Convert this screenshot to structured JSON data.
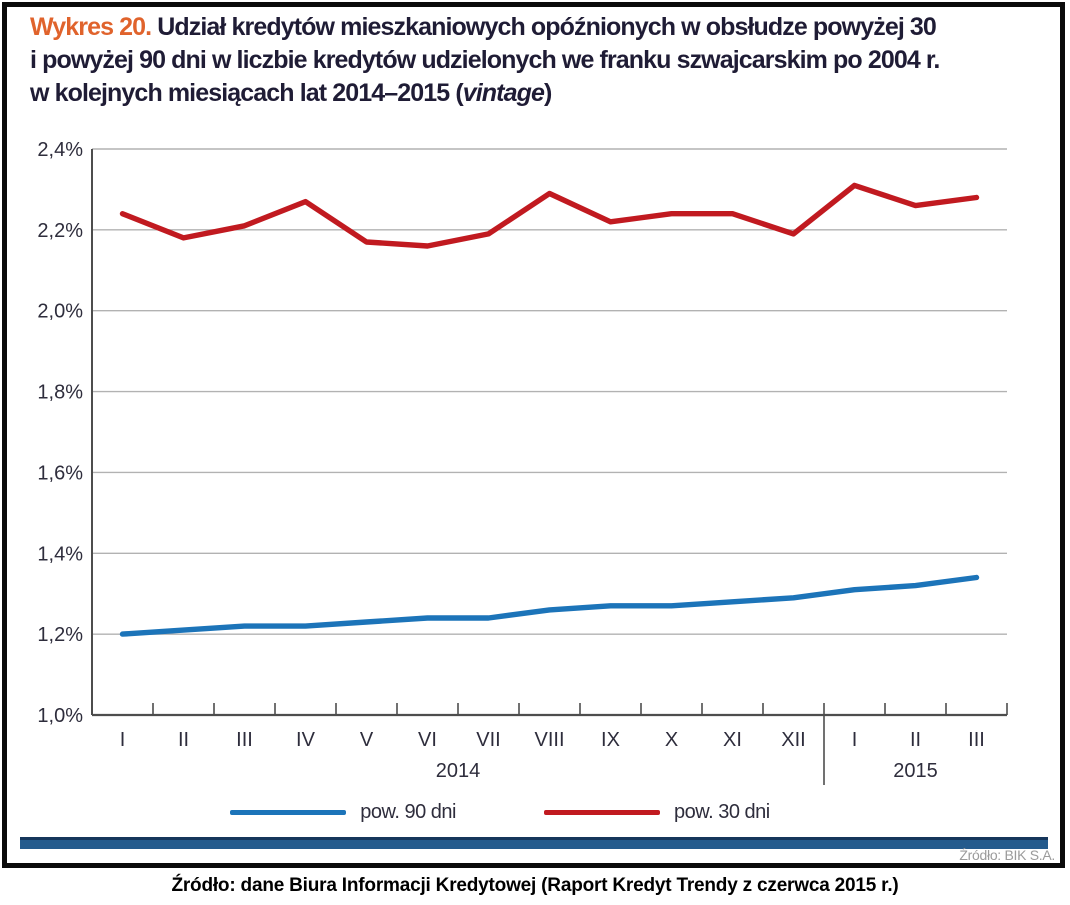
{
  "title": {
    "number": "Wykres 20.",
    "line1": "Udział kredytów mieszkaniowych opóźnionych w obsłudze powyżej 30",
    "line2": "i powyżej 90 dni w liczbie kredytów udzielonych we franku szwajcarskim po 2004 r.",
    "line3_prefix": "w kolejnych miesiącach lat 2014–2015 (",
    "line3_italic": "vintage",
    "line3_suffix": ")"
  },
  "chart_data": {
    "type": "line",
    "title": "Wykres 20. Udział kredytów mieszkaniowych opóźnionych w obsłudze powyżej 30 i powyżej 90 dni w liczbie kredytów udzielonych we franku szwajcarskim po 2004 r. w kolejnych miesiącach lat 2014–2015 (vintage)",
    "categories": [
      "I",
      "II",
      "III",
      "IV",
      "V",
      "VI",
      "VII",
      "VIII",
      "IX",
      "X",
      "XI",
      "XII",
      "I",
      "II",
      "III"
    ],
    "year_groups": [
      {
        "label": "2014",
        "months": 12
      },
      {
        "label": "2015",
        "months": 3
      }
    ],
    "series": [
      {
        "name": "pow. 90 dni",
        "slug": "pow-90-dni",
        "color": "#1c74b9",
        "values": [
          1.2,
          1.21,
          1.22,
          1.22,
          1.23,
          1.24,
          1.24,
          1.26,
          1.27,
          1.27,
          1.28,
          1.29,
          1.31,
          1.32,
          1.34
        ]
      },
      {
        "name": "pow. 30 dni",
        "slug": "pow-30-dni",
        "color": "#c11a20",
        "values": [
          2.24,
          2.18,
          2.21,
          2.27,
          2.17,
          2.16,
          2.19,
          2.29,
          2.22,
          2.24,
          2.24,
          2.19,
          2.31,
          2.26,
          2.28
        ]
      }
    ],
    "ylim": [
      1.0,
      2.4
    ],
    "ytick_step": 0.2,
    "ytick_labels": [
      "1,0%",
      "1,2%",
      "1,4%",
      "1,6%",
      "1,8%",
      "2,0%",
      "2,2%",
      "2,4%"
    ],
    "grid": true,
    "legend_position": "bottom"
  },
  "footer": {
    "source_inner": "Źródło: BIK S.A.",
    "caption": "Źródło: dane Biura Informacji Kredytowej (Raport Kredyt Trendy z czerwca 2015 r.)"
  },
  "colors": {
    "accent_orange": "#e0632c",
    "title_text": "#1f1c35",
    "series_blue": "#1c74b9",
    "series_red": "#c11a20",
    "grid": "#b2b2b2",
    "axis": "#4d4d4d",
    "tick_label": "#2e2d3c",
    "footer_bar_navy": "#245b8d",
    "footer_bar_edge": "#16365b",
    "source_gray": "#9b9b9b",
    "border_black": "#0a0a0a"
  }
}
